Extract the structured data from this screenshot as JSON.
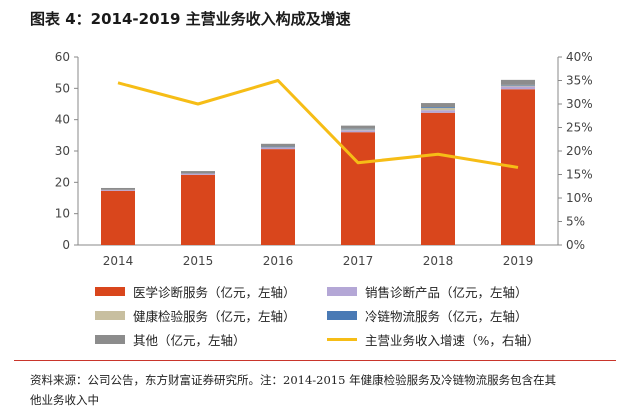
{
  "title": "图表 4：2014-2019 主营业务收入构成及增速",
  "source_text": "资料来源：公司公告，东方财富证券研究所。注：2014-2015 年健康检验服务及冷链物流服务包含在其",
  "source_text_cont": "他业务收入中",
  "colors": {
    "medical": "#d9461c",
    "sales": "#b4a7d6",
    "health": "#c8bfa0",
    "cold": "#4a7ab5",
    "other": "#8c8c8c",
    "growth": "#f6bd16",
    "accent": "#c9352b"
  },
  "chart_data": {
    "type": "bar",
    "categories": [
      "2014",
      "2015",
      "2016",
      "2017",
      "2018",
      "2019"
    ],
    "stacked": true,
    "ylim": [
      0,
      60
    ],
    "y_ticks": [
      "0",
      "10",
      "20",
      "30",
      "40",
      "50",
      "60"
    ],
    "y2lim": [
      0,
      40
    ],
    "y2_ticks": [
      "0%",
      "5%",
      "10%",
      "15%",
      "20%",
      "25%",
      "30%",
      "35%",
      "40%"
    ],
    "series": [
      {
        "name": "医学诊断服务（亿元，左轴）",
        "type": "bar",
        "axis": "left",
        "color_key": "medical",
        "values": [
          17.3,
          22.4,
          30.6,
          36.0,
          42.2,
          49.7
        ]
      },
      {
        "name": "销售诊断产品（亿元，左轴）",
        "type": "bar",
        "axis": "left",
        "color_key": "sales",
        "values": [
          0.3,
          0.4,
          0.5,
          0.6,
          0.8,
          0.9
        ]
      },
      {
        "name": "健康检验服务（亿元，左轴）",
        "type": "bar",
        "axis": "left",
        "color_key": "health",
        "values": [
          0,
          0,
          0.2,
          0.3,
          0.7,
          0.3
        ]
      },
      {
        "name": "冷链物流服务（亿元，左轴）",
        "type": "bar",
        "axis": "left",
        "color_key": "cold",
        "values": [
          0,
          0,
          0.1,
          0.2,
          0.3,
          0.2
        ]
      },
      {
        "name": "其他（亿元，左轴）",
        "type": "bar",
        "axis": "left",
        "color_key": "other",
        "values": [
          0.6,
          0.8,
          0.9,
          1.0,
          1.3,
          1.6
        ]
      },
      {
        "name": "主营业务收入增速（%，右轴）",
        "type": "line",
        "axis": "right",
        "color_key": "growth",
        "values": [
          34.5,
          30.0,
          35.0,
          17.5,
          19.3,
          16.5
        ]
      }
    ],
    "legend": [
      {
        "label": "医学诊断服务（亿元，左轴）",
        "color_key": "medical",
        "kind": "box"
      },
      {
        "label": "销售诊断产品（亿元，左轴）",
        "color_key": "sales",
        "kind": "box"
      },
      {
        "label": "健康检验服务（亿元，左轴）",
        "color_key": "health",
        "kind": "box"
      },
      {
        "label": "冷链物流服务（亿元，左轴）",
        "color_key": "cold",
        "kind": "box"
      },
      {
        "label": "其他（亿元，左轴）",
        "color_key": "other",
        "kind": "box"
      },
      {
        "label": "主营业务收入增速（%，右轴）",
        "color_key": "growth",
        "kind": "line"
      }
    ],
    "legend_position": "bottom",
    "grid": false
  }
}
